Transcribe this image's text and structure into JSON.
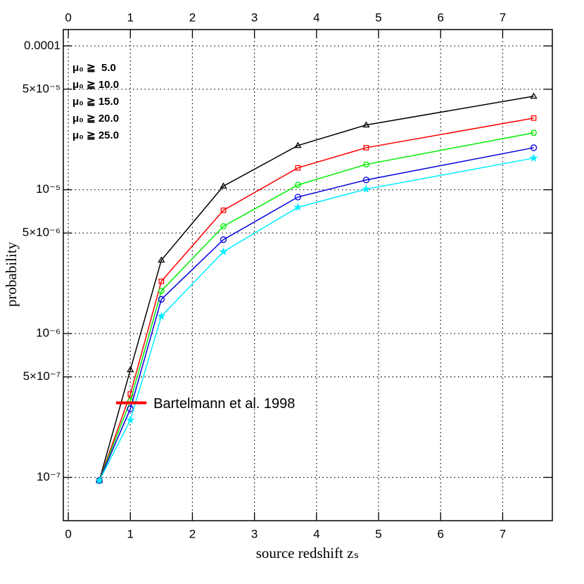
{
  "chart_data": {
    "type": "line",
    "x_label": "source redshift zₛ",
    "y_label": "probability",
    "xlim": [
      -0.08,
      7.8
    ],
    "ylim": [
      5e-08,
      0.00013
    ],
    "log_y": true,
    "grid": true,
    "legend": "top-left",
    "xticks": [
      0,
      1,
      2,
      3,
      4,
      5,
      6,
      7
    ],
    "yticks": [
      {
        "value": 0.0001,
        "label": "0.0001"
      },
      {
        "value": 5e-05,
        "label": "5×10⁻⁵"
      },
      {
        "value": 1e-05,
        "label": "10⁻⁵"
      },
      {
        "value": 5e-06,
        "label": "5×10⁻⁶"
      },
      {
        "value": 1e-06,
        "label": "10⁻⁶"
      },
      {
        "value": 5e-07,
        "label": "5×10⁻⁷"
      },
      {
        "value": 1e-07,
        "label": "10⁻⁷"
      }
    ],
    "x": [
      0.5,
      1,
      1.5,
      2.5,
      3.7,
      4.8,
      7.5
    ],
    "series": [
      {
        "name": "μ₀ ≧  5.0",
        "color": "#000000",
        "marker": "triangle",
        "values": [
          9.5e-08,
          5.6e-07,
          3.24e-06,
          1.06e-05,
          2.03e-05,
          2.82e-05,
          4.47e-05
        ]
      },
      {
        "name": "μ₀ ≧ 10.0",
        "color": "#ff0000",
        "marker": "square",
        "values": [
          9.5e-08,
          3.8e-07,
          2.31e-06,
          7.2e-06,
          1.42e-05,
          1.96e-05,
          3.15e-05
        ]
      },
      {
        "name": "μ₀ ≧ 15.0",
        "color": "#00ee00",
        "marker": "hexagon",
        "values": [
          9.5e-08,
          3.4e-07,
          1.98e-06,
          5.57e-06,
          1.08e-05,
          1.5e-05,
          2.49e-05
        ]
      },
      {
        "name": "μ₀ ≧ 20.0",
        "color": "#0000dd",
        "marker": "circle",
        "values": [
          9.5e-08,
          3e-07,
          1.73e-06,
          4.5e-06,
          8.9e-06,
          1.17e-05,
          1.96e-05
        ]
      },
      {
        "name": "μ₀ ≧ 25.0",
        "color": "#00eeff",
        "marker": "star",
        "values": [
          9.5e-08,
          2.5e-07,
          1.32e-06,
          3.71e-06,
          7.55e-06,
          1.01e-05,
          1.66e-05
        ]
      }
    ],
    "annotations": [
      {
        "text": "Bartelmann et al. 1998",
        "color": "#ff0000",
        "x": [
          0.77,
          1.26
        ],
        "y": 3.3e-07
      }
    ]
  }
}
